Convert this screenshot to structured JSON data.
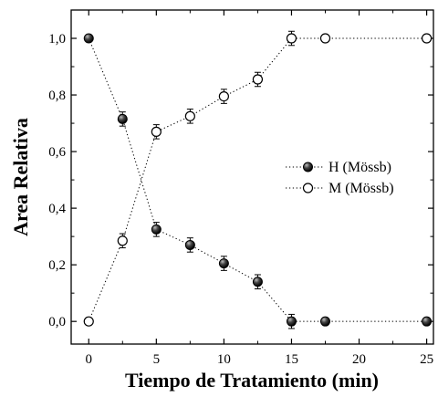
{
  "chart_data": {
    "type": "scatter",
    "title": "",
    "xlabel": "Tiempo de Tratamiento (min)",
    "ylabel": "Area Relativa",
    "xlim": [
      -1.3,
      25.5
    ],
    "ylim": [
      -0.08,
      1.1
    ],
    "xticks": [
      0,
      5,
      10,
      15,
      20,
      25
    ],
    "xtick_labels": [
      "0",
      "5",
      "10",
      "15",
      "20",
      "25"
    ],
    "yticks": [
      0.0,
      0.2,
      0.4,
      0.6,
      0.8,
      1.0
    ],
    "ytick_labels": [
      "0,0",
      "0,2",
      "0,4",
      "0,6",
      "0,8",
      "1,0"
    ],
    "legend_position": "right",
    "series": [
      {
        "name": "H (Mössb)",
        "marker": "filled-circle",
        "line": "dotted",
        "color": "#000000",
        "x": [
          0,
          2.5,
          5,
          7.5,
          10,
          12.5,
          15,
          17.5,
          25
        ],
        "y": [
          1.0,
          0.715,
          0.325,
          0.27,
          0.205,
          0.14,
          0.0,
          0.0,
          0.0
        ],
        "error": [
          0,
          0.025,
          0.025,
          0.025,
          0.025,
          0.025,
          0.025,
          0,
          0
        ]
      },
      {
        "name": "M (Mössb)",
        "marker": "open-circle",
        "line": "dotted",
        "color": "#000000",
        "x": [
          0,
          2.5,
          5,
          7.5,
          10,
          12.5,
          15,
          17.5,
          25
        ],
        "y": [
          0.0,
          0.285,
          0.67,
          0.725,
          0.795,
          0.855,
          1.0,
          1.0,
          1.0
        ],
        "error": [
          0,
          0.025,
          0.025,
          0.025,
          0.025,
          0.025,
          0.025,
          0,
          0
        ]
      }
    ]
  }
}
